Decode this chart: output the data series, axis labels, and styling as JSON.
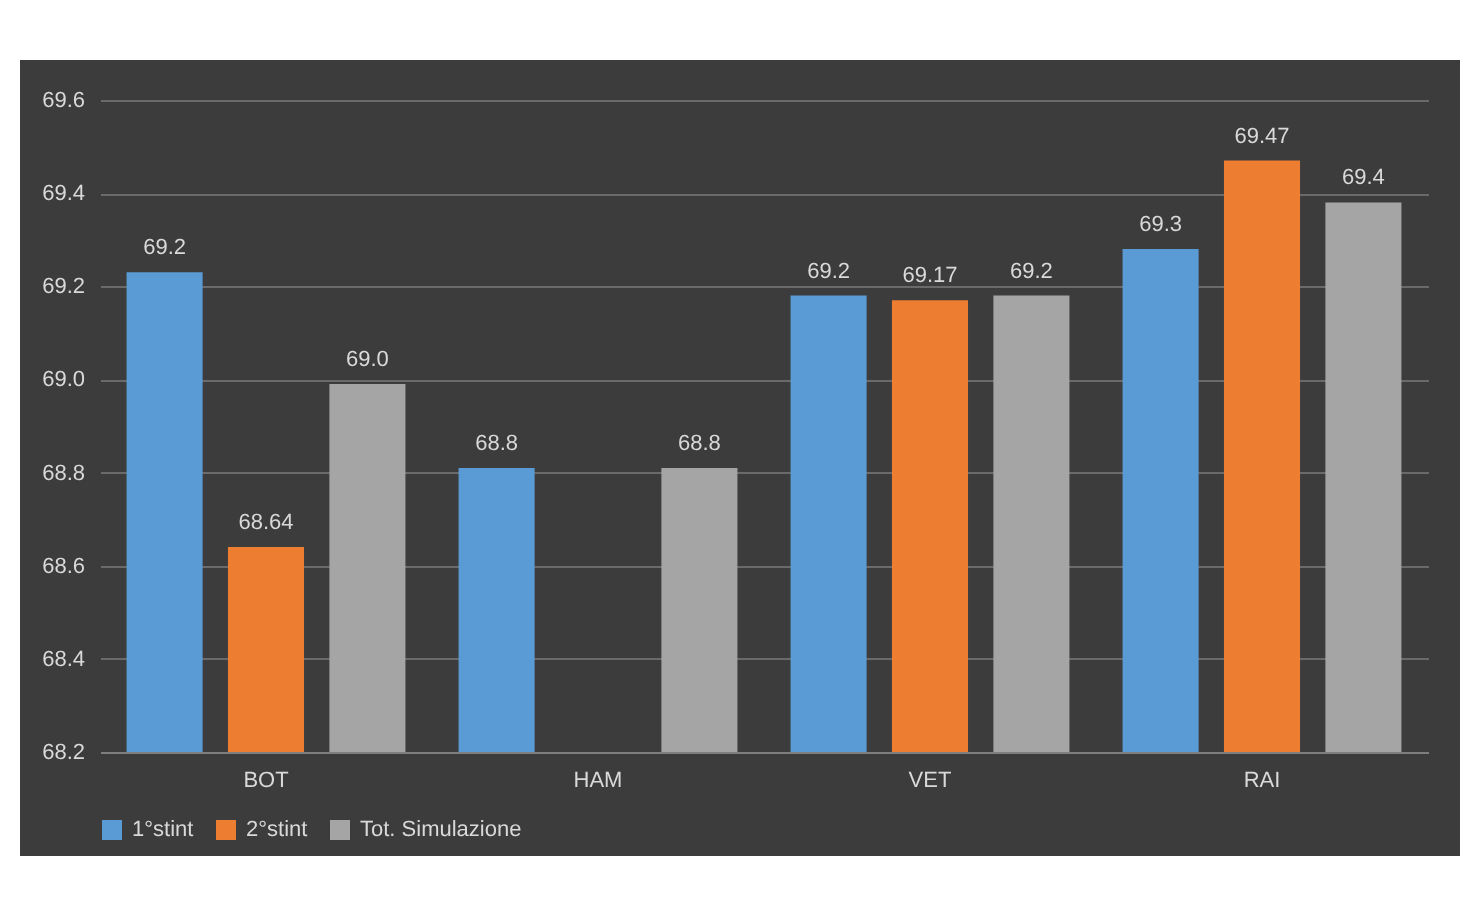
{
  "chart_data": {
    "type": "bar",
    "categories": [
      "BOT",
      "HAM",
      "VET",
      "RAI"
    ],
    "series": [
      {
        "name": "1°stint",
        "color": "#5b9bd5",
        "values": [
          69.23,
          68.81,
          69.18,
          69.28
        ],
        "value_labels": [
          "69.2",
          "68.8",
          "69.2",
          "69.3"
        ]
      },
      {
        "name": "2°stint",
        "color": "#ed7d31",
        "values": [
          68.64,
          null,
          69.17,
          69.47
        ],
        "value_labels": [
          "68.64",
          null,
          "69.17",
          "69.47"
        ]
      },
      {
        "name": "Tot. Simulazione",
        "color": "#a5a5a5",
        "values": [
          68.99,
          68.81,
          69.18,
          69.38
        ],
        "value_labels": [
          "69.0",
          "68.8",
          "69.2",
          "69.4"
        ]
      }
    ],
    "ylim": [
      68.2,
      69.6
    ],
    "yticks": [
      68.2,
      68.4,
      68.6,
      68.8,
      {
        "value": 69.0,
        "label": "69.0"
      },
      69.2,
      69.4,
      69.6
    ],
    "grid": "y",
    "legend": "bottom"
  }
}
